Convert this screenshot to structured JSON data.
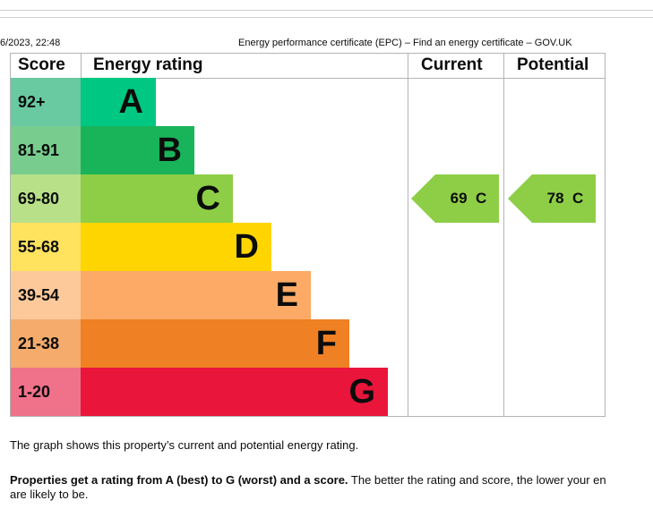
{
  "header": {
    "datetime": "6/2023, 22:48",
    "doc_title": "Energy performance certificate (EPC) – Find an energy certificate – GOV.UK"
  },
  "table": {
    "headers": {
      "score": "Score",
      "rating": "Energy rating",
      "current": "Current",
      "potential": "Potential"
    },
    "bands": [
      {
        "score": "92+",
        "letter": "A",
        "color": "#00c781",
        "score_bg": "#69c9a0"
      },
      {
        "score": "81-91",
        "letter": "B",
        "color": "#19b459",
        "score_bg": "#78cc8e"
      },
      {
        "score": "69-80",
        "letter": "C",
        "color": "#8dce46",
        "score_bg": "#b8e089"
      },
      {
        "score": "55-68",
        "letter": "D",
        "color": "#ffd500",
        "score_bg": "#ffe25e"
      },
      {
        "score": "39-54",
        "letter": "E",
        "color": "#fcaa65",
        "score_bg": "#fdc99b"
      },
      {
        "score": "21-38",
        "letter": "F",
        "color": "#ef8023",
        "score_bg": "#f4ab6b"
      },
      {
        "score": "1-20",
        "letter": "G",
        "color": "#e9153b",
        "score_bg": "#f0718a"
      }
    ],
    "current": {
      "text": "69  C",
      "color": "#8dce46"
    },
    "potential": {
      "text": "78  C",
      "color": "#8dce46"
    }
  },
  "text": {
    "p1": "The graph shows this property’s current and potential energy rating.",
    "p2_bold": "Properties get a rating from A (best) to G (worst) and a score.",
    "p2_rest": " The better the rating and score, the lower your en",
    "p2_line2": "are likely to be."
  }
}
